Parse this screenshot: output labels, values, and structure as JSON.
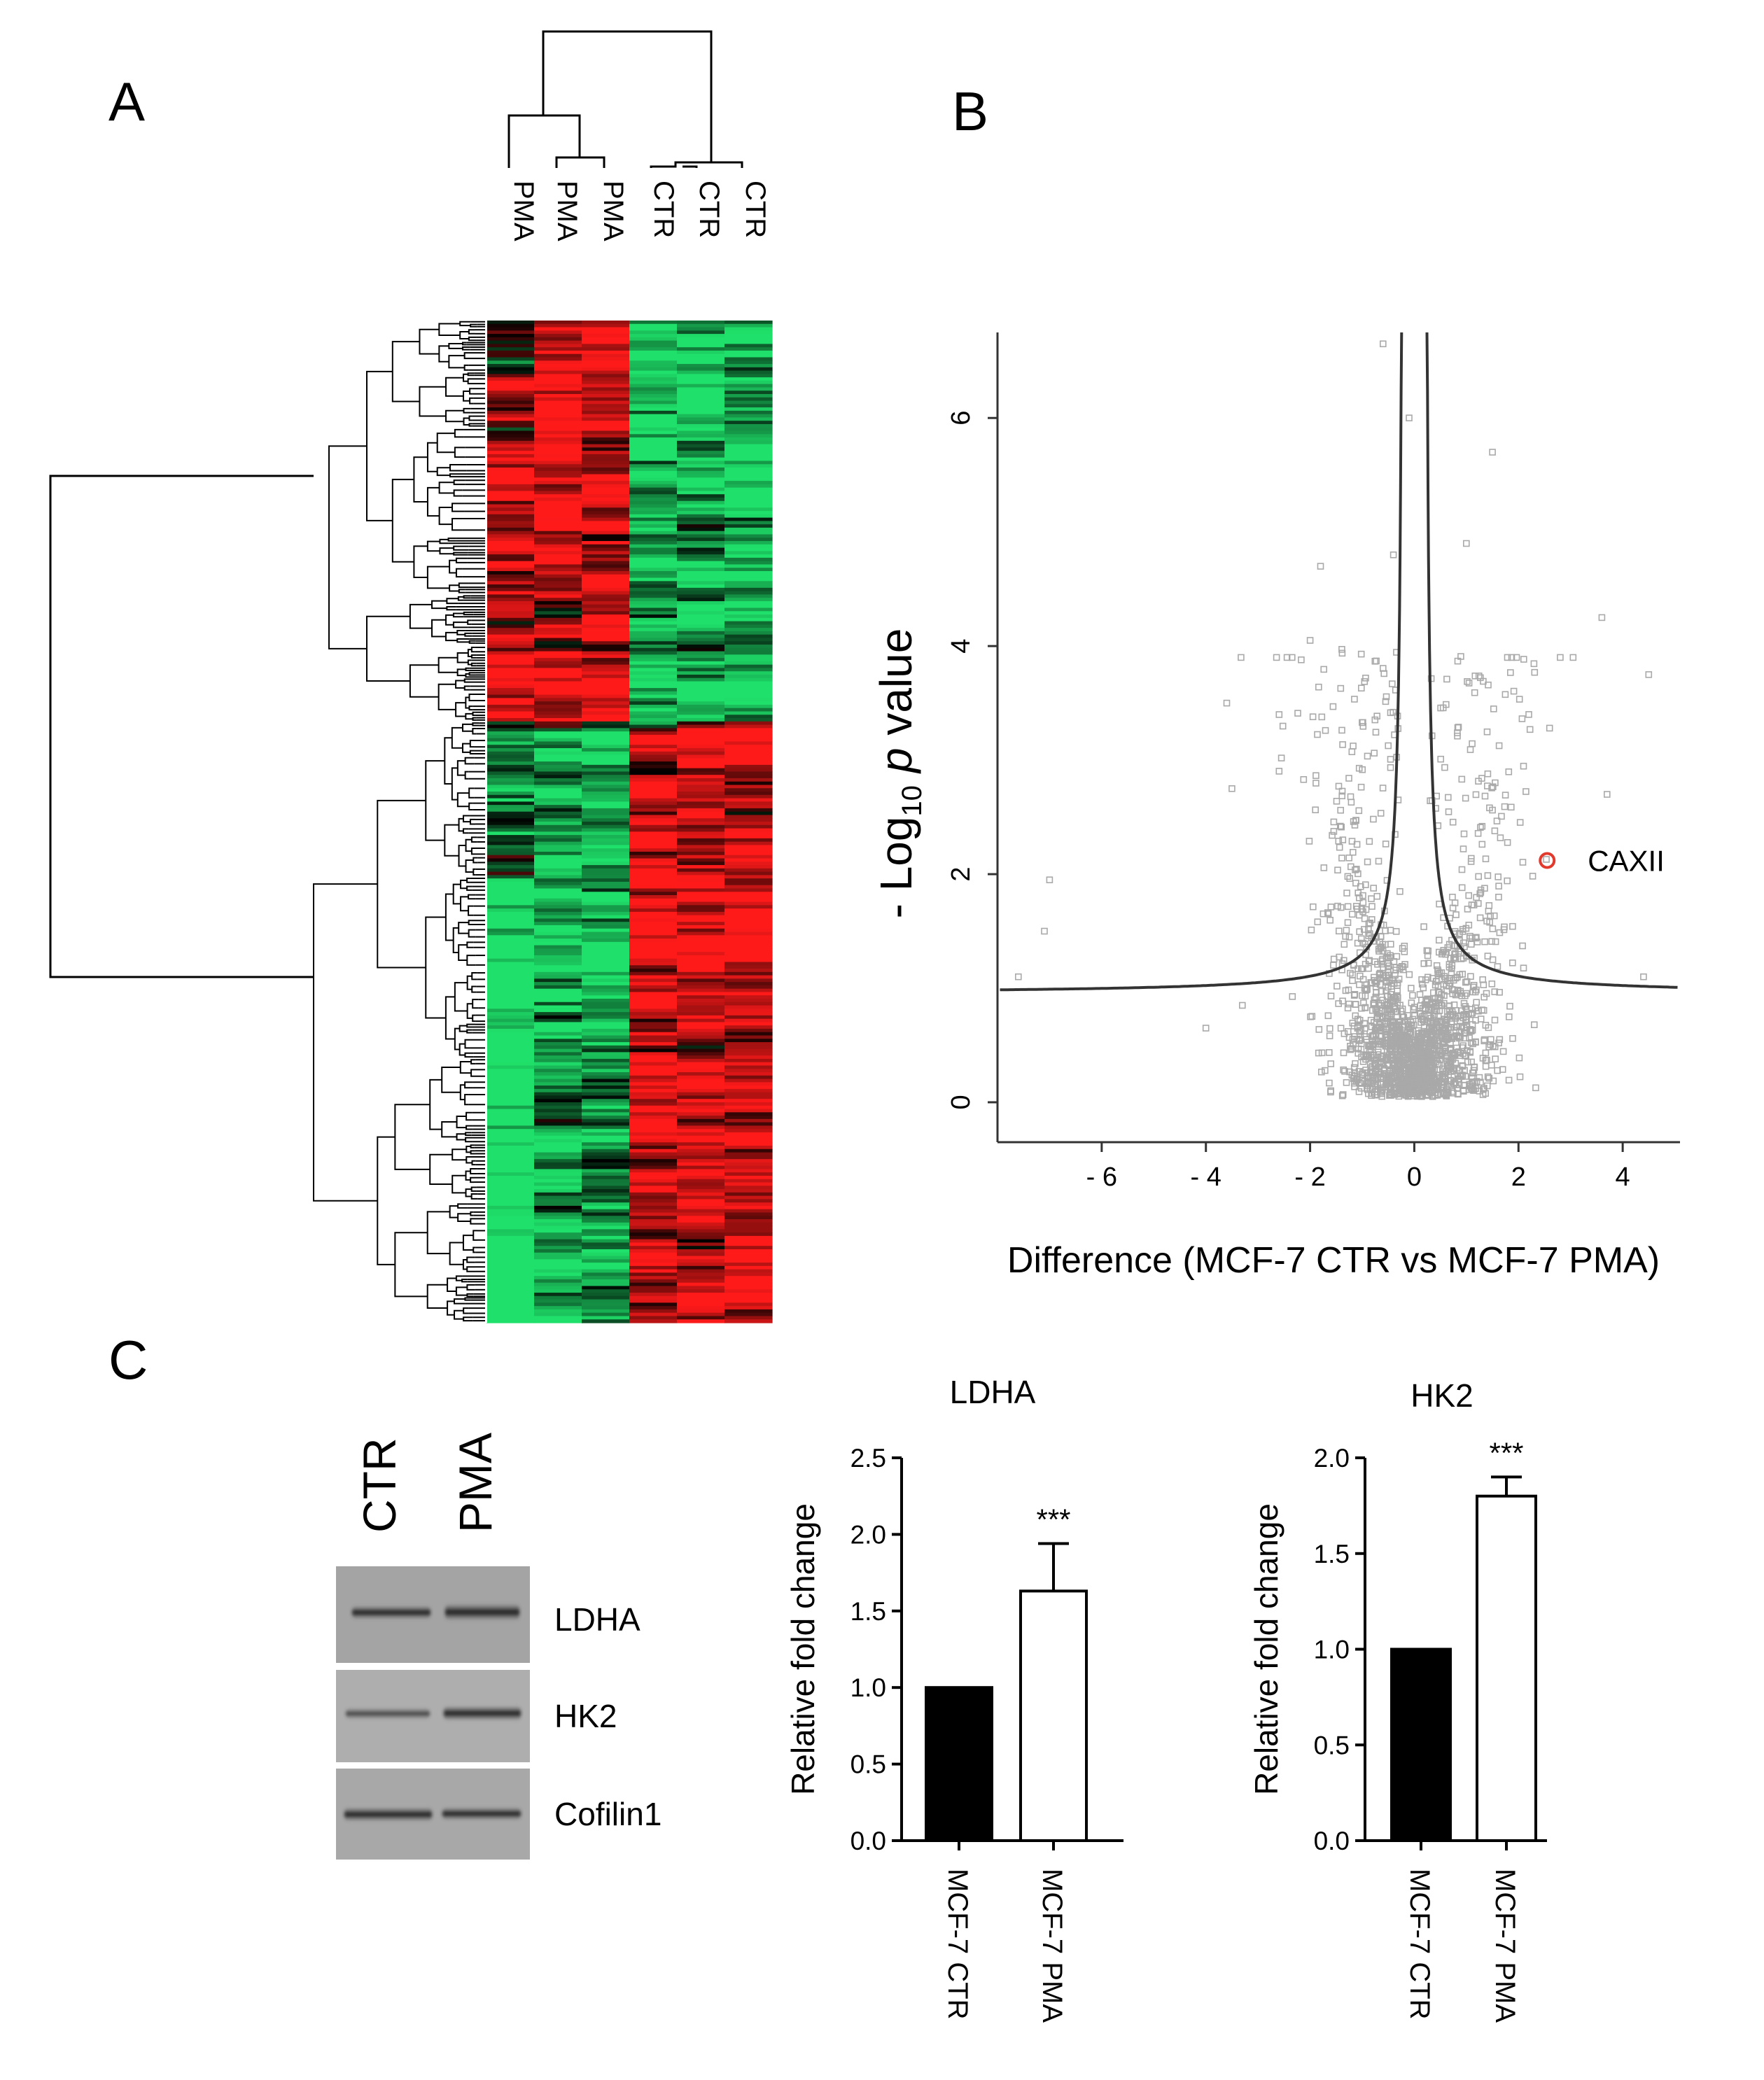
{
  "panels": {
    "a": "A",
    "b": "B",
    "c": "C"
  },
  "colors": {
    "red": "#ff1a1a",
    "green": "#1fe06a",
    "black": "#000000",
    "scatter_point": "#a9a9a9",
    "highlight": "#e23b2e"
  },
  "chart_data": [
    {
      "type": "heatmap",
      "panel": "A",
      "columns": [
        "PMA",
        "PMA",
        "PMA",
        "CTR",
        "CTR",
        "CTR"
      ],
      "column_groups": [
        {
          "label": "PMA",
          "members": [
            0,
            1,
            2
          ]
        },
        {
          "label": "CTR",
          "members": [
            3,
            4,
            5
          ]
        }
      ],
      "row_clusters": [
        {
          "rows": "upper",
          "pattern": {
            "PMA": "up (red)",
            "CTR": "down (green)"
          }
        },
        {
          "rows": "lower",
          "pattern": {
            "PMA": "down (green)",
            "CTR": "up (red)"
          }
        }
      ],
      "color_scale": {
        "low": "#1fe06a",
        "mid": "#000000",
        "high": "#ff1a1a"
      }
    },
    {
      "type": "scatter",
      "panel": "B",
      "title": "",
      "xlabel": "Difference (MCF-7 CTR vs MCF-7 PMA)",
      "ylabel_parts": {
        "pre": "- Log",
        "sub": "10",
        "italic": "p",
        "post": " value"
      },
      "xlim": [
        -8.0,
        5.1
      ],
      "ylim": [
        -0.35,
        6.75
      ],
      "xticks": [
        -6,
        -4,
        -2,
        0,
        2,
        4
      ],
      "ytick_values": [
        0,
        2,
        4,
        6
      ],
      "tick_labels_x": [
        "- 6",
        "- 4",
        "- 2",
        "0",
        "2",
        "4"
      ],
      "tick_labels_y": [
        "0",
        "2",
        "4",
        "6"
      ],
      "cutoff_curve": {
        "description": "significance threshold, two branches",
        "asymptote_x": [
          -0.2,
          0.2
        ],
        "floor_y": 0.95
      },
      "highlight": {
        "label": "CAXII",
        "x": 2.55,
        "y": 2.12
      },
      "outliers": [
        {
          "x": -7.0,
          "y": 1.95
        },
        {
          "x": -7.1,
          "y": 1.5
        },
        {
          "x": -7.6,
          "y": 1.1
        },
        {
          "x": -3.6,
          "y": 3.5
        },
        {
          "x": -3.5,
          "y": 2.75
        },
        {
          "x": -2.0,
          "y": 4.05
        },
        {
          "x": -1.8,
          "y": 4.7
        },
        {
          "x": -0.4,
          "y": 4.8
        },
        {
          "x": -0.6,
          "y": 6.65
        },
        {
          "x": -0.1,
          "y": 6.0
        },
        {
          "x": 1.5,
          "y": 5.7
        },
        {
          "x": 4.5,
          "y": 3.75
        },
        {
          "x": 3.6,
          "y": 4.25
        },
        {
          "x": 3.7,
          "y": 2.7
        },
        {
          "x": 4.4,
          "y": 1.1
        },
        {
          "x": 1.0,
          "y": 4.9
        },
        {
          "x": -4.0,
          "y": 0.65
        },
        {
          "x": -3.3,
          "y": 0.85
        }
      ]
    },
    {
      "type": "bar",
      "panel": "C",
      "title": "LDHA",
      "ylabel": "Relative fold change",
      "categories": [
        "MCF-7 CTR",
        "MCF-7 PMA"
      ],
      "values": [
        1.0,
        1.63
      ],
      "errors": [
        0.0,
        0.31
      ],
      "significance": [
        "",
        "***"
      ],
      "ylim": [
        0,
        2.5
      ],
      "ytick_values": [
        0.0,
        0.5,
        1.0,
        1.5,
        2.0,
        2.5
      ],
      "ytick_labels": [
        "0.0",
        "0.5",
        "1.0",
        "1.5",
        "2.0",
        "2.5"
      ],
      "bar_fills": [
        "#000000",
        "#ffffff"
      ]
    },
    {
      "type": "bar",
      "panel": "C",
      "title": "HK2",
      "ylabel": "Relative fold change",
      "categories": [
        "MCF-7 CTR",
        "MCF-7 PMA"
      ],
      "values": [
        1.0,
        1.8
      ],
      "errors": [
        0.0,
        0.1
      ],
      "significance": [
        "",
        "***"
      ],
      "ylim": [
        0,
        2.0
      ],
      "ytick_values": [
        0.0,
        0.5,
        1.0,
        1.5,
        2.0
      ],
      "ytick_labels": [
        "0.0",
        "0.5",
        "1.0",
        "1.5",
        "2.0"
      ],
      "bar_fills": [
        "#000000",
        "#ffffff"
      ]
    }
  ],
  "western_blot": {
    "lanes": [
      "CTR",
      "PMA"
    ],
    "bands": [
      {
        "label": "LDHA"
      },
      {
        "label": "HK2"
      },
      {
        "label": "Cofilin1"
      }
    ]
  }
}
